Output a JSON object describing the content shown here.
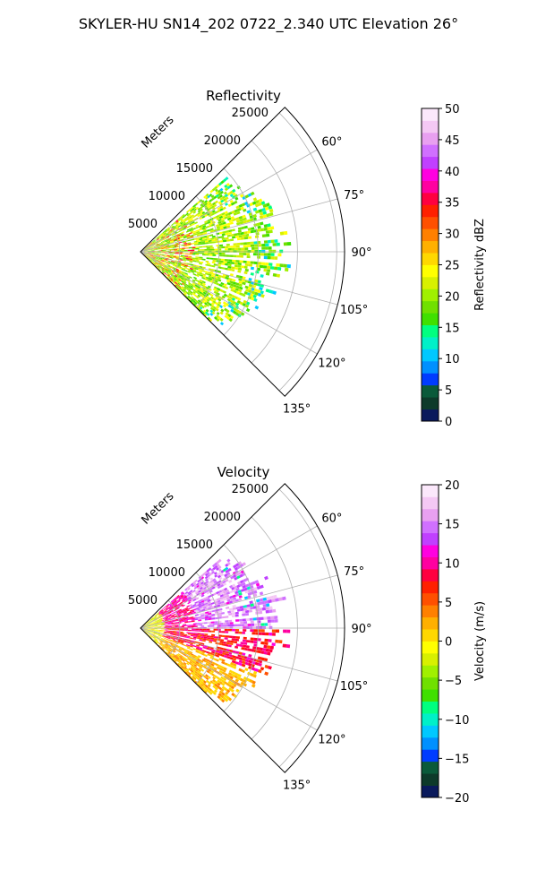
{
  "figure_title": "SKYLER-HU  SN14_202  0722_2.340 UTC Elevation 26°",
  "chart_data": [
    {
      "type": "heatmap",
      "title": "Reflectivity",
      "radial_axis_label": "Meters",
      "radial_ticks": [
        5000,
        10000,
        15000,
        20000,
        25000
      ],
      "radial_tick_labels": [
        "5000",
        "10000",
        "15000",
        "20000",
        "25000"
      ],
      "azimuth_range_deg": [
        45,
        135
      ],
      "azimuth_ticks_deg": [
        60,
        75,
        90,
        105,
        120,
        135
      ],
      "azimuth_tick_labels": [
        "60°",
        "75°",
        "90°",
        "105°",
        "120°",
        "135°"
      ],
      "grid": true,
      "colorbar": {
        "label": "Reflectivity dBZ",
        "vmin": 0,
        "vmax": 50,
        "ticks": [
          0,
          5,
          10,
          15,
          20,
          25,
          30,
          35,
          40,
          45,
          50
        ],
        "tick_labels": [
          "0",
          "5",
          "10",
          "15",
          "20",
          "25",
          "30",
          "35",
          "40",
          "45",
          "50"
        ],
        "colors": [
          "#0a1a5c",
          "#0d3a2a",
          "#0a5a3a",
          "#003cff",
          "#0090ff",
          "#00c8ff",
          "#00f0c8",
          "#00ff80",
          "#40e000",
          "#70e000",
          "#a0f000",
          "#d8f000",
          "#ffff00",
          "#ffd800",
          "#ffb000",
          "#ff8000",
          "#ff5000",
          "#ff2000",
          "#ff0040",
          "#ff00a0",
          "#ff00e0",
          "#c040ff",
          "#d070ff",
          "#e8a0f0",
          "#f4c8f4",
          "#fbe8fb"
        ]
      },
      "approx_data": {
        "max_range_m": 19000,
        "dominant_values_dbz": [
          17,
          22
        ],
        "max_value_dbz": 38
      }
    },
    {
      "type": "heatmap",
      "title": "Velocity",
      "radial_axis_label": "Meters",
      "radial_ticks": [
        5000,
        10000,
        15000,
        20000,
        25000
      ],
      "radial_tick_labels": [
        "5000",
        "10000",
        "15000",
        "20000",
        "25000"
      ],
      "azimuth_range_deg": [
        45,
        135
      ],
      "azimuth_ticks_deg": [
        60,
        75,
        90,
        105,
        120,
        135
      ],
      "azimuth_tick_labels": [
        "60°",
        "75°",
        "90°",
        "105°",
        "120°",
        "135°"
      ],
      "grid": true,
      "colorbar": {
        "label": "Velocity (m/s)",
        "vmin": -20,
        "vmax": 20,
        "ticks": [
          -20,
          -15,
          -10,
          -5,
          0,
          5,
          10,
          15,
          20
        ],
        "tick_labels": [
          "−20",
          "−15",
          "−10",
          "−5",
          "0",
          "5",
          "10",
          "15",
          "20"
        ],
        "colors": [
          "#0a1a5c",
          "#0d3a2a",
          "#0a5a3a",
          "#003cff",
          "#0090ff",
          "#00c8ff",
          "#00f0c8",
          "#00ff80",
          "#40e000",
          "#70e000",
          "#a0f000",
          "#d8f000",
          "#ffff00",
          "#ffd800",
          "#ffb000",
          "#ff8000",
          "#ff5000",
          "#ff2000",
          "#ff0040",
          "#ff00a0",
          "#ff00e0",
          "#c040ff",
          "#d070ff",
          "#e8a0f0",
          "#f4c8f4",
          "#fbe8fb"
        ]
      },
      "approx_data": {
        "max_range_m": 19000,
        "north_sector_velocity_ms": 12,
        "south_sector_velocity_ms": 3
      }
    }
  ]
}
